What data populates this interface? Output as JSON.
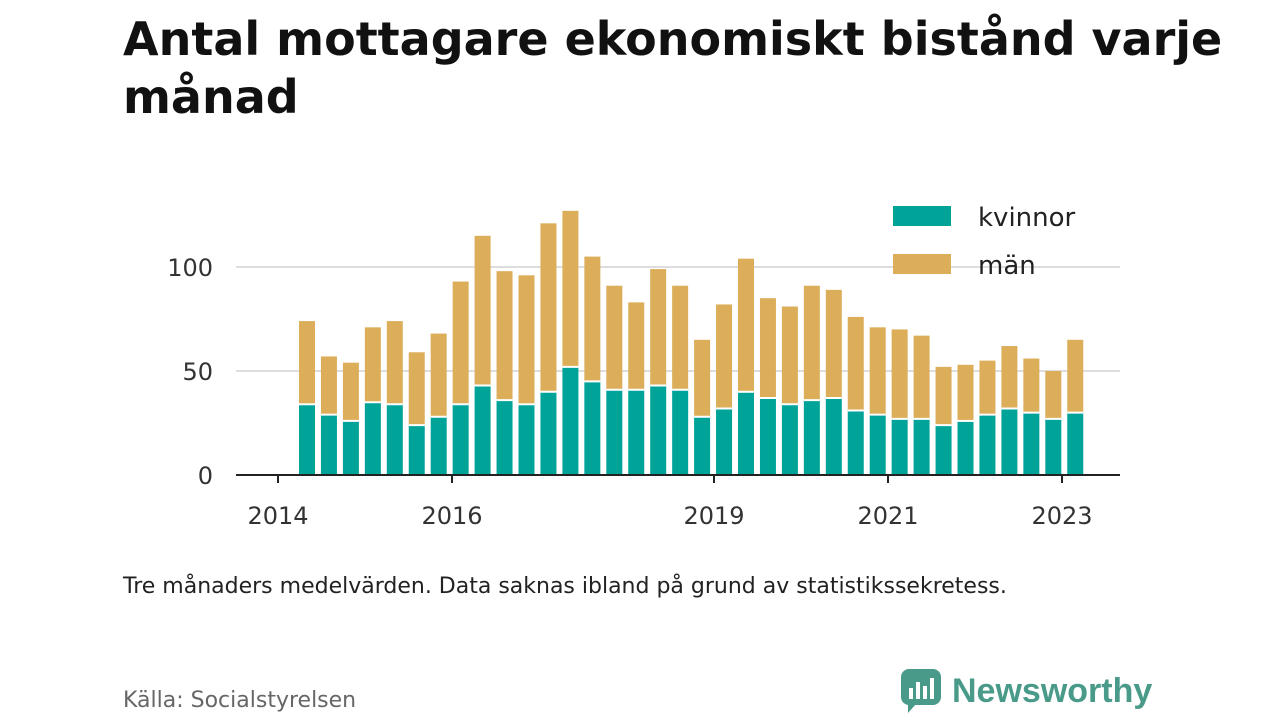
{
  "title": "Antal mottagare ekonomiskt bistånd varje månad",
  "note": "Tre månaders medelvärden. Data saknas ibland på grund av statistikssekretess.",
  "source": "Källa: Socialstyrelsen",
  "brand": "Newsworthy",
  "colors": {
    "kvinnor": "#00a398",
    "man": "#dcae5a",
    "grid": "#dddddd",
    "axis": "#222222",
    "brand": "#4a9a8a"
  },
  "chart_data": {
    "type": "bar",
    "stacked": true,
    "x_ticks": [
      "2014",
      "2016",
      "2019",
      "2021",
      "2023"
    ],
    "y_ticks": [
      "0",
      "50",
      "100"
    ],
    "ylim": [
      0,
      125
    ],
    "grid": true,
    "legend_position": "top-right",
    "series": [
      {
        "name": "kvinnor",
        "values": [
          34,
          29,
          26,
          35,
          34,
          24,
          28,
          34,
          43,
          36,
          34,
          40,
          52,
          45,
          41,
          41,
          43,
          41,
          28,
          32,
          40,
          37,
          34,
          36,
          37,
          31,
          29,
          27,
          27,
          24,
          26,
          29,
          32,
          30,
          27,
          30
        ]
      },
      {
        "name": "män",
        "values": [
          40,
          28,
          28,
          36,
          40,
          35,
          40,
          59,
          72,
          62,
          62,
          81,
          75,
          60,
          50,
          42,
          56,
          50,
          37,
          50,
          64,
          48,
          47,
          55,
          52,
          45,
          42,
          43,
          40,
          28,
          27,
          26,
          30,
          26,
          23,
          35
        ]
      }
    ]
  }
}
